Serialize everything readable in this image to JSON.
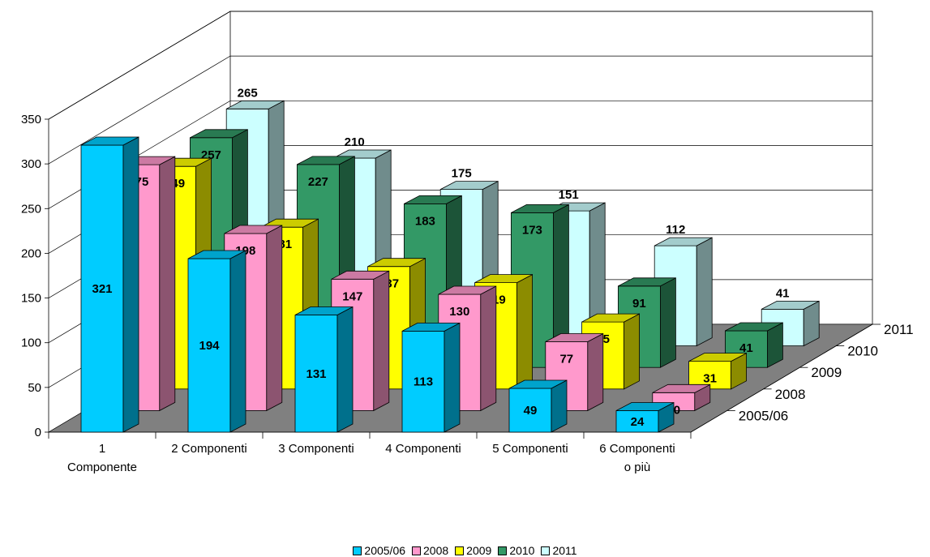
{
  "chart_data": {
    "type": "bar",
    "subtype": "3d-clustered-column",
    "title": "",
    "categories": [
      "1 Componente",
      "2 Componenti",
      "3 Componenti",
      "4 Componenti",
      "5 Componenti",
      "6 Componenti o più"
    ],
    "series": [
      {
        "name": "2005/06",
        "color": "#00CCFF",
        "values": [
          321,
          194,
          131,
          113,
          49,
          24
        ]
      },
      {
        "name": "2008",
        "color": "#FF99CC",
        "values": [
          275,
          198,
          147,
          130,
          77,
          20
        ]
      },
      {
        "name": "2009",
        "color": "#FFFF00",
        "values": [
          249,
          181,
          137,
          119,
          75,
          31
        ]
      },
      {
        "name": "2010",
        "color": "#339966",
        "values": [
          257,
          227,
          183,
          173,
          91,
          41
        ]
      },
      {
        "name": "2011",
        "color": "#CCFFFF",
        "values": [
          265,
          210,
          175,
          151,
          112,
          41
        ]
      }
    ],
    "ylim": [
      0,
      350
    ],
    "yticks": [
      0,
      50,
      100,
      150,
      200,
      250,
      300,
      350
    ],
    "data_labels": true,
    "legend_position": "bottom",
    "grid": true,
    "floor_color": "#808080"
  }
}
